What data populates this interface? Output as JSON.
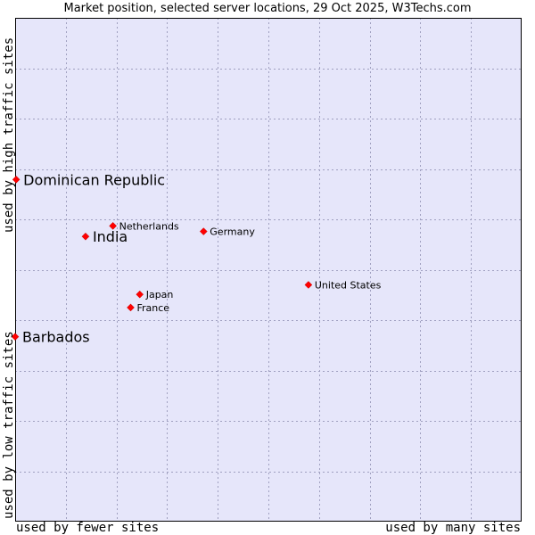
{
  "chart_data": {
    "type": "scatter",
    "title": "Market position, selected server locations, 29 Oct 2025, W3Techs.com",
    "xlabel_low": "used by fewer sites",
    "xlabel_high": "used by many sites",
    "ylabel_low": "used by low traffic sites",
    "ylabel_high": "used by high traffic sites",
    "xlim": [
      0,
      100
    ],
    "ylim": [
      0,
      100
    ],
    "grid": true,
    "colors": {
      "plot_bg": "#e6e6fa",
      "grid": "#a0a0c0",
      "point": "#ff0000",
      "border": "#000000"
    },
    "points": [
      {
        "label": "Dominican Republic",
        "x": 0.2,
        "y": 67.9,
        "size": "large"
      },
      {
        "label": "Netherlands",
        "x": 19.3,
        "y": 58.7,
        "size": "small"
      },
      {
        "label": "Germany",
        "x": 37.2,
        "y": 57.6,
        "size": "small"
      },
      {
        "label": "India",
        "x": 13.9,
        "y": 56.6,
        "size": "large"
      },
      {
        "label": "United States",
        "x": 57.9,
        "y": 47.0,
        "size": "small"
      },
      {
        "label": "Japan",
        "x": 24.6,
        "y": 45.1,
        "size": "small"
      },
      {
        "label": "France",
        "x": 22.8,
        "y": 42.5,
        "size": "small"
      },
      {
        "label": "Barbados",
        "x": 0.0,
        "y": 36.7,
        "size": "large"
      }
    ]
  }
}
